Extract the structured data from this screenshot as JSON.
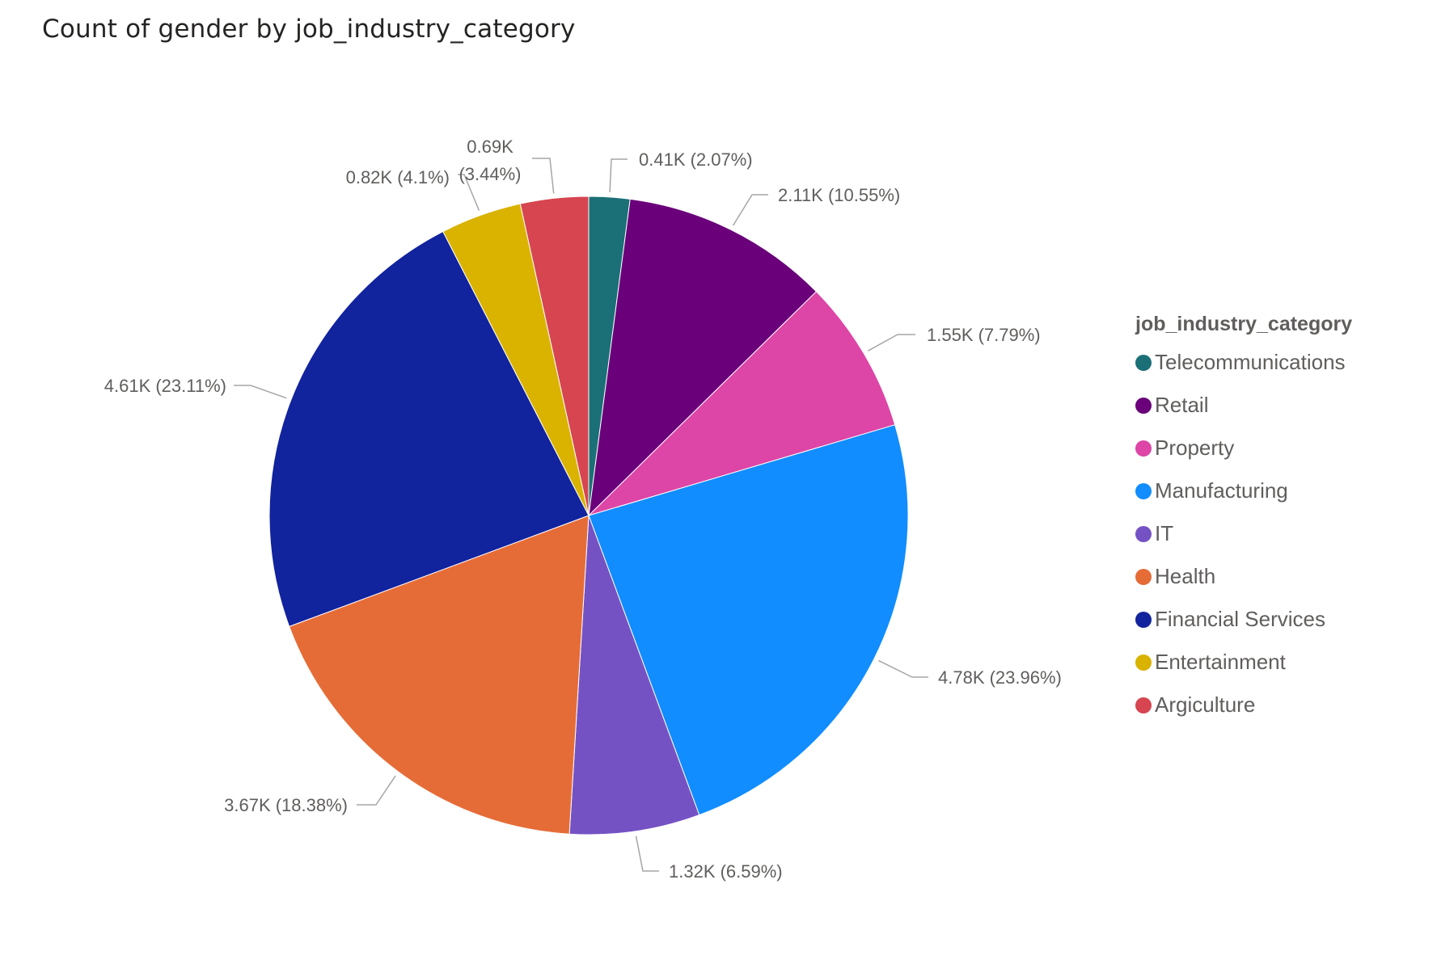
{
  "chart_data": {
    "type": "pie",
    "title": "Count of gender by job_industry_category",
    "legend_title": "job_industry_category",
    "legend_position": "right",
    "slices": [
      {
        "label": "Telecommunications",
        "value": 0.41,
        "percent": 2.07,
        "data_label": "0.41K (2.07%)",
        "color": "#1a7076"
      },
      {
        "label": "Retail",
        "value": 2.11,
        "percent": 10.55,
        "data_label": "2.11K (10.55%)",
        "color": "#6a007a"
      },
      {
        "label": "Property",
        "value": 1.55,
        "percent": 7.79,
        "data_label": "1.55K (7.79%)",
        "color": "#dd45a6"
      },
      {
        "label": "Manufacturing",
        "value": 4.78,
        "percent": 23.96,
        "data_label": "4.78K (23.96%)",
        "color": "#118dff"
      },
      {
        "label": "IT",
        "value": 1.32,
        "percent": 6.59,
        "data_label": "1.32K (6.59%)",
        "color": "#7552c4"
      },
      {
        "label": "Health",
        "value": 3.67,
        "percent": 18.38,
        "data_label": "3.67K (18.38%)",
        "color": "#e66c37"
      },
      {
        "label": "Financial Services",
        "value": 4.61,
        "percent": 23.11,
        "data_label": "4.61K (23.11%)",
        "color": "#12239e"
      },
      {
        "label": "Entertainment",
        "value": 0.82,
        "percent": 4.1,
        "data_label": "0.82K (4.1%)",
        "color": "#d9b300"
      },
      {
        "label": "Argiculture",
        "value": 0.69,
        "percent": 3.44,
        "data_label": "0.69K\n(3.44%)",
        "color": "#d64550"
      }
    ]
  }
}
